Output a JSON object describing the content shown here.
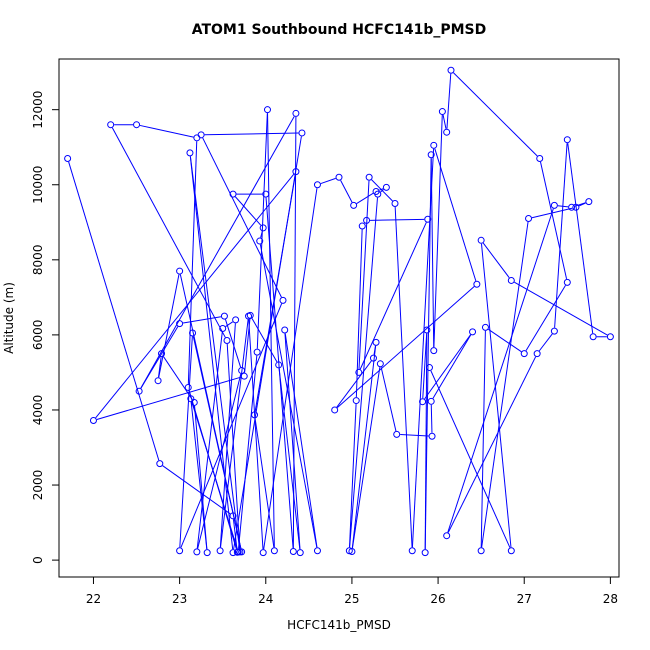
{
  "chart_data": {
    "type": "line",
    "title": "ATOM1 Southbound HCFC141b_PMSD",
    "xlabel": "HCFC141b_PMSD",
    "ylabel": "Altitude (m)",
    "xlim": [
      21.6,
      28.1
    ],
    "ylim": [
      -450,
      13350
    ],
    "x_ticks": [
      22,
      23,
      24,
      25,
      26,
      27,
      28
    ],
    "y_ticks": [
      0,
      2000,
      4000,
      6000,
      8000,
      10000,
      12000
    ],
    "x_tick_labels": [
      "22",
      "23",
      "24",
      "25",
      "26",
      "27",
      "28"
    ],
    "y_tick_labels": [
      "0",
      "2000",
      "4000",
      "6000",
      "8000",
      "10000",
      "12000"
    ],
    "grid": false,
    "legend": "none",
    "colors": {
      "series": "#0000ff",
      "axis": "#000000",
      "background": "#ffffff"
    },
    "series": [
      {
        "marker": "open-circle",
        "points": [
          [
            21.7,
            10700
          ],
          [
            22.77,
            2570
          ],
          [
            23.62,
            1180
          ],
          [
            23.67,
            210
          ],
          [
            23.1,
            4600
          ],
          [
            23.2,
            11250
          ],
          [
            22.5,
            11600
          ],
          [
            22.2,
            11600
          ],
          [
            23.55,
            5850
          ],
          [
            23.7,
            220
          ],
          [
            23.12,
            10850
          ],
          [
            23.62,
            200
          ],
          [
            24.42,
            11380
          ],
          [
            23.25,
            11330
          ],
          [
            24.2,
            6920
          ],
          [
            23.0,
            250
          ],
          [
            23.15,
            6050
          ],
          [
            23.72,
            220
          ],
          [
            23.0,
            7700
          ],
          [
            22.75,
            4780
          ],
          [
            22.79,
            5500
          ],
          [
            23.17,
            4200
          ],
          [
            23.32,
            200
          ],
          [
            23.13,
            4300
          ],
          [
            23.68,
            220
          ],
          [
            23.9,
            5540
          ],
          [
            24.02,
            12000
          ],
          [
            24.1,
            250
          ],
          [
            23.87,
            3870
          ],
          [
            24.35,
            10350
          ],
          [
            22.0,
            3720
          ],
          [
            23.75,
            4900
          ],
          [
            23.82,
            6520
          ],
          [
            24.15,
            5200
          ],
          [
            24.4,
            200
          ],
          [
            24.22,
            6130
          ],
          [
            24.6,
            250
          ],
          [
            23.93,
            8500
          ],
          [
            23.97,
            8850
          ],
          [
            23.62,
            9750
          ],
          [
            24.0,
            9750
          ],
          [
            24.32,
            230
          ],
          [
            24.35,
            11900
          ],
          [
            22.53,
            4500
          ],
          [
            23.0,
            6300
          ],
          [
            23.52,
            6500
          ],
          [
            23.72,
            5050
          ],
          [
            23.2,
            220
          ],
          [
            23.5,
            6170
          ],
          [
            23.65,
            6400
          ],
          [
            23.47,
            250
          ],
          [
            23.8,
            6500
          ],
          [
            23.97,
            200
          ],
          [
            24.6,
            10000
          ],
          [
            24.85,
            10200
          ],
          [
            25.02,
            9450
          ],
          [
            25.28,
            9820
          ],
          [
            25.4,
            9930
          ],
          [
            25.3,
            9750
          ],
          [
            24.97,
            250
          ],
          [
            25.05,
            4250
          ],
          [
            25.12,
            8900
          ],
          [
            25.17,
            9050
          ],
          [
            25.88,
            9080
          ],
          [
            25.08,
            5000
          ],
          [
            25.2,
            10200
          ],
          [
            25.5,
            9500
          ],
          [
            25.7,
            250
          ],
          [
            25.95,
            11050
          ],
          [
            26.45,
            7350
          ],
          [
            24.8,
            4000
          ],
          [
            25.25,
            5380
          ],
          [
            25.28,
            5800
          ],
          [
            25.0,
            230
          ],
          [
            25.33,
            5230
          ],
          [
            25.52,
            3350
          ],
          [
            25.93,
            3300
          ],
          [
            25.92,
            4230
          ],
          [
            26.4,
            6080
          ],
          [
            25.82,
            4220
          ],
          [
            25.87,
            6130
          ],
          [
            25.85,
            200
          ],
          [
            25.92,
            10800
          ],
          [
            25.95,
            5580
          ],
          [
            26.05,
            11950
          ],
          [
            26.1,
            11400
          ],
          [
            26.15,
            13050
          ],
          [
            27.18,
            10700
          ],
          [
            27.5,
            7400
          ],
          [
            27.0,
            5500
          ],
          [
            26.55,
            6200
          ],
          [
            26.5,
            250
          ],
          [
            27.05,
            9100
          ],
          [
            27.6,
            9400
          ],
          [
            27.75,
            9550
          ],
          [
            27.55,
            9400
          ],
          [
            27.35,
            9450
          ],
          [
            26.1,
            650
          ],
          [
            27.15,
            5500
          ],
          [
            27.35,
            6100
          ],
          [
            27.5,
            11200
          ],
          [
            27.8,
            5950
          ],
          [
            28.0,
            5950
          ],
          [
            26.85,
            7450
          ],
          [
            26.5,
            8520
          ],
          [
            26.85,
            250
          ],
          [
            25.9,
            5130
          ]
        ]
      }
    ]
  }
}
